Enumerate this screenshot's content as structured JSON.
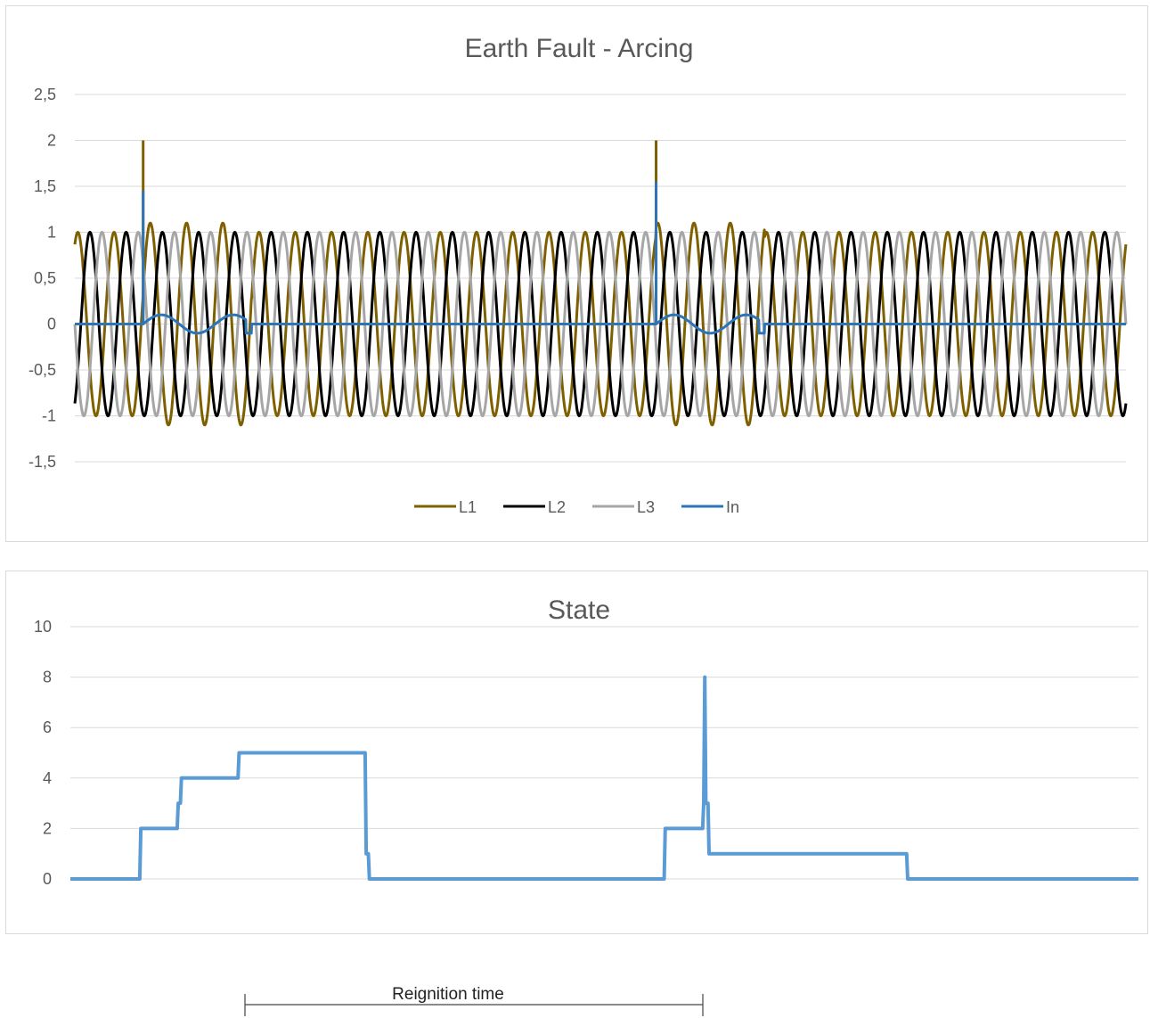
{
  "chart_data": [
    {
      "type": "line",
      "title": "Earth Fault - Arcing",
      "ylim": [
        -1.5,
        2.5
      ],
      "y_ticks": [
        "2,5",
        "2",
        "1,5",
        "1",
        "0,5",
        "0",
        "-0,5",
        "-1",
        "-1,5"
      ],
      "grid": true,
      "legend_position": "bottom",
      "x_range": [
        0,
        1
      ],
      "cycles": 29,
      "fault_events": [
        0.065,
        0.553
      ],
      "transient_end": [
        0.168,
        0.656
      ],
      "series": [
        {
          "name": "L1",
          "color": "#7f6000",
          "phase_deg": 0,
          "peak": 1.0,
          "spike": 2.0
        },
        {
          "name": "L2",
          "color": "#000000",
          "phase_deg": -120,
          "peak": 1.0
        },
        {
          "name": "L3",
          "color": "#a6a6a6",
          "phase_deg": 120,
          "peak": 1.0
        },
        {
          "name": "In",
          "color": "#2e75b6",
          "base": 0,
          "spike": [
            1.45,
            1.55
          ],
          "osc_amplitude": 0.1
        }
      ]
    },
    {
      "type": "line",
      "title": "State",
      "ylim": [
        0,
        10
      ],
      "y_ticks": [
        "10",
        "8",
        "6",
        "4",
        "2",
        "0"
      ],
      "grid": true,
      "series": [
        {
          "name": "State",
          "color": "#5b9bd5",
          "x": [
            0,
            0.065,
            0.066,
            0.1,
            0.101,
            0.103,
            0.104,
            0.157,
            0.158,
            0.276,
            0.277,
            0.279,
            0.28,
            0.556,
            0.557,
            0.592,
            0.593,
            0.594,
            0.595,
            0.597,
            0.598,
            0.783,
            0.784,
            1.0
          ],
          "y": [
            0,
            0,
            2,
            2,
            3,
            3,
            4,
            4,
            5,
            5,
            1,
            1,
            0,
            0,
            2,
            2,
            3,
            8,
            3,
            3,
            1,
            1,
            0,
            0
          ]
        }
      ]
    }
  ],
  "annotation": {
    "label": "Reignition time"
  }
}
